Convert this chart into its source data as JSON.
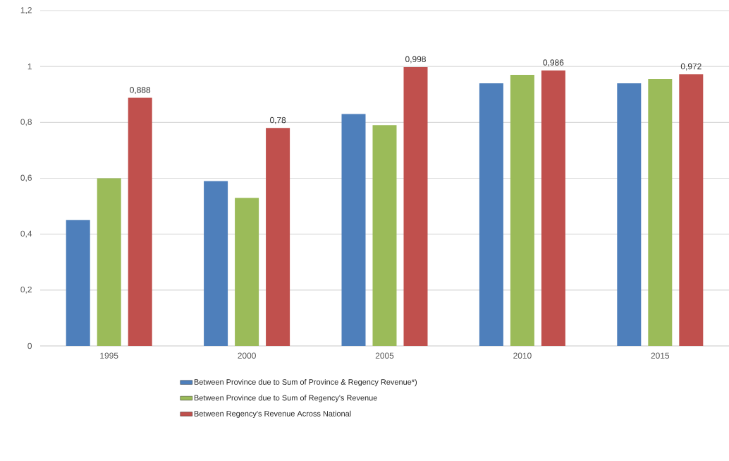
{
  "chart_data": {
    "type": "bar",
    "categories": [
      "1995",
      "2000",
      "2005",
      "2010",
      "2015"
    ],
    "series": [
      {
        "name": "Between Province due to Sum of Province & Regency  Revenue*)",
        "color": "#4e7fbb",
        "values": [
          0.45,
          0.59,
          0.83,
          0.94,
          0.94
        ]
      },
      {
        "name": "Between Province due to Sum of Regency's Revenue",
        "color": "#9bbb59",
        "values": [
          0.6,
          0.53,
          0.79,
          0.97,
          0.955
        ]
      },
      {
        "name": "Between Regency's Revenue Across National",
        "color": "#c0504d",
        "values": [
          0.888,
          0.78,
          0.998,
          0.986,
          0.972
        ],
        "value_labels": [
          "0,888",
          "0,78",
          "0,998",
          "0,986",
          "0,972"
        ]
      }
    ],
    "ylim": [
      0,
      1.2
    ],
    "yticks": [
      {
        "value": 0,
        "label": "0"
      },
      {
        "value": 0.2,
        "label": "0,2"
      },
      {
        "value": 0.4,
        "label": "0,4"
      },
      {
        "value": 0.6,
        "label": "0,6"
      },
      {
        "value": 0.8,
        "label": "0,8"
      },
      {
        "value": 1,
        "label": "1"
      },
      {
        "value": 1.2,
        "label": "1,2"
      }
    ],
    "grid": "y",
    "legend": "bottom"
  }
}
